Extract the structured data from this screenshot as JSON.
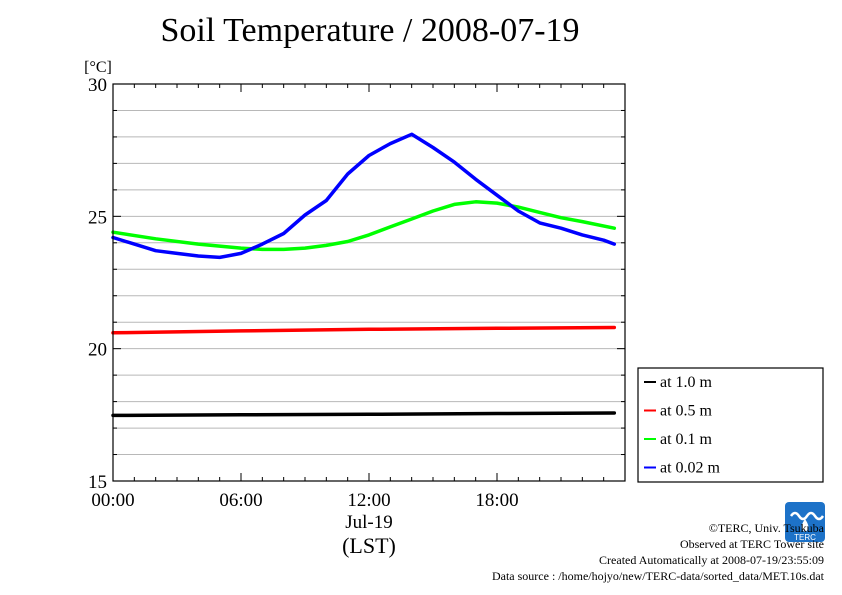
{
  "chart_data": {
    "type": "line",
    "title": "Soil Temperature / 2008-07-19",
    "yunit": "[°C]",
    "ylim": [
      15,
      30
    ],
    "yticks": [
      15,
      20,
      25,
      30
    ],
    "xlim": [
      0,
      24
    ],
    "xticks": [
      {
        "x": 0,
        "label": "00:00"
      },
      {
        "x": 6,
        "label": "06:00"
      },
      {
        "x": 12,
        "label": "12:00"
      },
      {
        "x": 18,
        "label": "18:00"
      }
    ],
    "xdate": "Jul-19",
    "xlabel": "(LST)",
    "grid": true,
    "legend_position": "right",
    "series": [
      {
        "name": "at 1.0 m",
        "color": "#000000",
        "x": [
          0,
          6,
          12,
          18,
          23.5
        ],
        "y": [
          17.48,
          17.5,
          17.52,
          17.55,
          17.57
        ]
      },
      {
        "name": "at 0.5 m",
        "color": "#ff0000",
        "x": [
          0,
          6,
          12,
          18,
          23.5
        ],
        "y": [
          20.6,
          20.67,
          20.73,
          20.77,
          20.8
        ]
      },
      {
        "name": "at 0.1 m",
        "color": "#00ff00",
        "x": [
          0,
          2,
          4,
          6,
          7,
          8,
          9,
          10,
          11,
          12,
          13,
          14,
          15,
          16,
          17,
          18,
          19,
          20,
          21,
          22,
          23.5
        ],
        "y": [
          24.4,
          24.15,
          23.95,
          23.8,
          23.75,
          23.75,
          23.8,
          23.9,
          24.05,
          24.3,
          24.6,
          24.9,
          25.2,
          25.45,
          25.55,
          25.5,
          25.35,
          25.15,
          24.95,
          24.8,
          24.55
        ]
      },
      {
        "name": "at 0.02 m",
        "color": "#0000ff",
        "x": [
          0,
          1,
          2,
          3,
          4,
          5,
          6,
          7,
          8,
          9,
          10,
          11,
          12,
          13,
          14,
          15,
          16,
          17,
          18,
          19,
          20,
          21,
          22,
          23,
          23.5
        ],
        "y": [
          24.2,
          23.95,
          23.7,
          23.6,
          23.5,
          23.45,
          23.6,
          23.95,
          24.35,
          25.05,
          25.6,
          26.6,
          27.3,
          27.75,
          28.1,
          27.6,
          27.05,
          26.4,
          25.8,
          25.2,
          24.75,
          24.55,
          24.3,
          24.1,
          23.95
        ]
      }
    ]
  },
  "footer": {
    "copyright": "©TERC, Univ. Tsukuba",
    "observed": "Observed at TERC Tower site",
    "created": "Created Automatically at 2008-07-19/23:55:09",
    "source": "Data source : /home/hojyo/new/TERC-data/sorted_data/MET.10s.dat"
  },
  "logo": {
    "text": "TERC",
    "color": "#1d72c8"
  }
}
